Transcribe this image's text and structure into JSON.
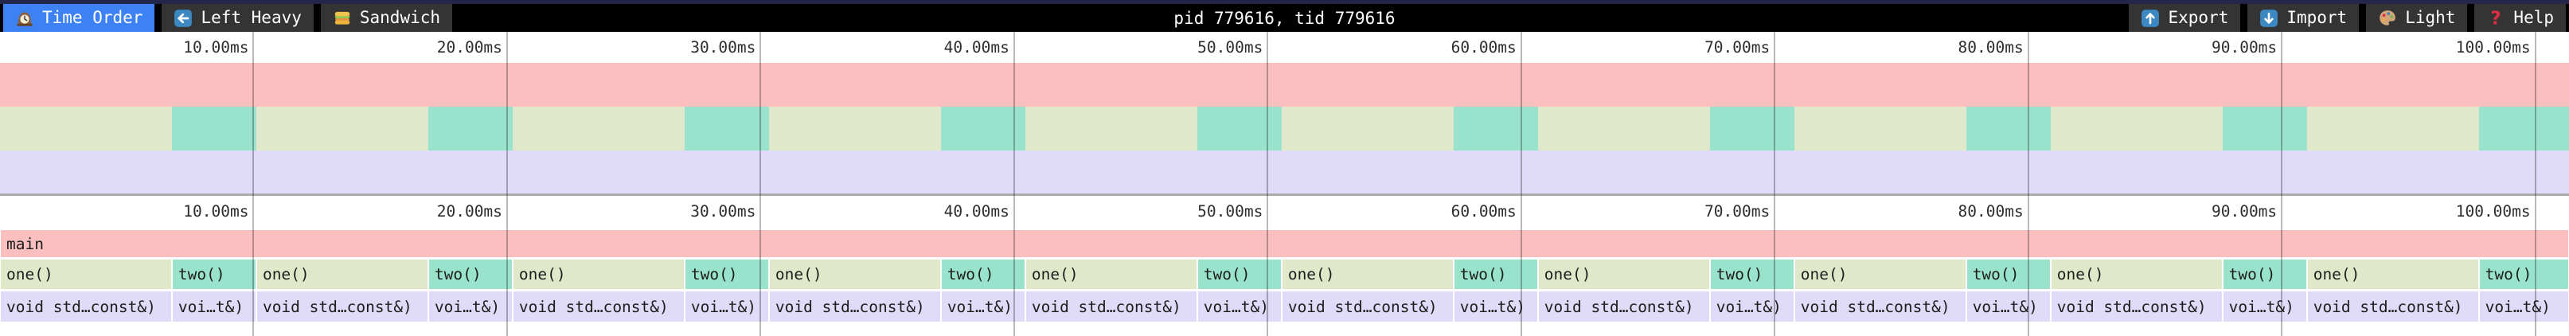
{
  "toolbar": {
    "tabs": [
      {
        "label": "Time Order",
        "icon": "clock-icon",
        "active": true
      },
      {
        "label": "Left Heavy",
        "icon": "left-arrow-icon",
        "active": false
      },
      {
        "label": "Sandwich",
        "icon": "sandwich-icon",
        "active": false
      }
    ],
    "title": "pid 779616, tid 779616",
    "actions": [
      {
        "label": "Export",
        "icon": "export-icon"
      },
      {
        "label": "Import",
        "icon": "import-icon"
      },
      {
        "label": "Light",
        "icon": "palette-icon"
      },
      {
        "label": "Help",
        "icon": "help-icon"
      }
    ]
  },
  "colors": {
    "top_strip": "#23264a",
    "toolbar_bg": "#000000",
    "button_bg": "#343434",
    "active_tab": "#3c82f5",
    "toolbar_text": "#ffffff",
    "ruler_text": "#2d2d2d",
    "divider": "#ababab",
    "gridline": "rgba(0,0,0,0.28)",
    "frame_text": "#1d1d1d",
    "frame_main": "#fcbfbf",
    "frame_one": "#dfe9ca",
    "frame_two": "#99e3cd",
    "frame_sleep": "#dfdbf8"
  },
  "chart_data": {
    "type": "flamechart",
    "title": "pid 779616, tid 779616",
    "time_unit": "ms",
    "total_ms": 101.33,
    "ticks": [
      {
        "label": "10.00ms",
        "ms": 10
      },
      {
        "label": "20.00ms",
        "ms": 20
      },
      {
        "label": "30.00ms",
        "ms": 30
      },
      {
        "label": "40.00ms",
        "ms": 40
      },
      {
        "label": "50.00ms",
        "ms": 50
      },
      {
        "label": "60.00ms",
        "ms": 60
      },
      {
        "label": "70.00ms",
        "ms": 70
      },
      {
        "label": "80.00ms",
        "ms": 80
      },
      {
        "label": "90.00ms",
        "ms": 90
      },
      {
        "label": "100.00ms",
        "ms": 100
      }
    ],
    "rows": [
      {
        "depth": 0,
        "frames": [
          {
            "label": "main",
            "start": 0,
            "end": 101.33,
            "color": "frame_main"
          }
        ]
      },
      {
        "depth": 1,
        "frames": [
          {
            "label": "one()",
            "start": 0,
            "end": 6.78,
            "color": "frame_one"
          },
          {
            "label": "two()",
            "start": 6.78,
            "end": 10.11,
            "color": "frame_two"
          },
          {
            "label": "one()",
            "start": 10.11,
            "end": 16.89,
            "color": "frame_one"
          },
          {
            "label": "two()",
            "start": 16.89,
            "end": 20.22,
            "color": "frame_two"
          },
          {
            "label": "one()",
            "start": 20.22,
            "end": 27.0,
            "color": "frame_one"
          },
          {
            "label": "two()",
            "start": 27.0,
            "end": 30.33,
            "color": "frame_two"
          },
          {
            "label": "one()",
            "start": 30.33,
            "end": 37.11,
            "color": "frame_one"
          },
          {
            "label": "two()",
            "start": 37.11,
            "end": 40.44,
            "color": "frame_two"
          },
          {
            "label": "one()",
            "start": 40.44,
            "end": 47.22,
            "color": "frame_one"
          },
          {
            "label": "two()",
            "start": 47.22,
            "end": 50.55,
            "color": "frame_two"
          },
          {
            "label": "one()",
            "start": 50.55,
            "end": 57.33,
            "color": "frame_one"
          },
          {
            "label": "two()",
            "start": 57.33,
            "end": 60.66,
            "color": "frame_two"
          },
          {
            "label": "one()",
            "start": 60.66,
            "end": 67.44,
            "color": "frame_one"
          },
          {
            "label": "two()",
            "start": 67.44,
            "end": 70.77,
            "color": "frame_two"
          },
          {
            "label": "one()",
            "start": 70.77,
            "end": 77.55,
            "color": "frame_one"
          },
          {
            "label": "two()",
            "start": 77.55,
            "end": 80.88,
            "color": "frame_two"
          },
          {
            "label": "one()",
            "start": 80.88,
            "end": 87.66,
            "color": "frame_one"
          },
          {
            "label": "two()",
            "start": 87.66,
            "end": 90.99,
            "color": "frame_two"
          },
          {
            "label": "one()",
            "start": 90.99,
            "end": 97.77,
            "color": "frame_one"
          },
          {
            "label": "two()",
            "start": 97.77,
            "end": 101.33,
            "color": "frame_two"
          }
        ]
      },
      {
        "depth": 2,
        "frames": [
          {
            "label": "void std…const&)",
            "start": 0,
            "end": 6.78,
            "color": "frame_sleep"
          },
          {
            "label": "voi…t&)",
            "start": 6.78,
            "end": 10.11,
            "color": "frame_sleep"
          },
          {
            "label": "void std…const&)",
            "start": 10.11,
            "end": 16.89,
            "color": "frame_sleep"
          },
          {
            "label": "voi…t&)",
            "start": 16.89,
            "end": 20.22,
            "color": "frame_sleep"
          },
          {
            "label": "void std…const&)",
            "start": 20.22,
            "end": 27.0,
            "color": "frame_sleep"
          },
          {
            "label": "voi…t&)",
            "start": 27.0,
            "end": 30.33,
            "color": "frame_sleep"
          },
          {
            "label": "void std…const&)",
            "start": 30.33,
            "end": 37.11,
            "color": "frame_sleep"
          },
          {
            "label": "voi…t&)",
            "start": 37.11,
            "end": 40.44,
            "color": "frame_sleep"
          },
          {
            "label": "void std…const&)",
            "start": 40.44,
            "end": 47.22,
            "color": "frame_sleep"
          },
          {
            "label": "voi…t&)",
            "start": 47.22,
            "end": 50.55,
            "color": "frame_sleep"
          },
          {
            "label": "void std…const&)",
            "start": 50.55,
            "end": 57.33,
            "color": "frame_sleep"
          },
          {
            "label": "voi…t&)",
            "start": 57.33,
            "end": 60.66,
            "color": "frame_sleep"
          },
          {
            "label": "void std…const&)",
            "start": 60.66,
            "end": 67.44,
            "color": "frame_sleep"
          },
          {
            "label": "voi…t&)",
            "start": 67.44,
            "end": 70.77,
            "color": "frame_sleep"
          },
          {
            "label": "void std…const&)",
            "start": 70.77,
            "end": 77.55,
            "color": "frame_sleep"
          },
          {
            "label": "voi…t&)",
            "start": 77.55,
            "end": 80.88,
            "color": "frame_sleep"
          },
          {
            "label": "void std…const&)",
            "start": 80.88,
            "end": 87.66,
            "color": "frame_sleep"
          },
          {
            "label": "voi…t&)",
            "start": 87.66,
            "end": 90.99,
            "color": "frame_sleep"
          },
          {
            "label": "void std…const&)",
            "start": 90.99,
            "end": 97.77,
            "color": "frame_sleep"
          },
          {
            "label": "voi…t&)",
            "start": 97.77,
            "end": 101.33,
            "color": "frame_sleep"
          }
        ]
      }
    ]
  }
}
